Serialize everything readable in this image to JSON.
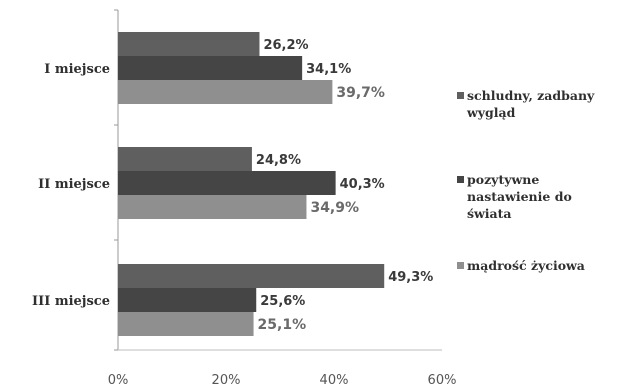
{
  "chart_data": {
    "type": "bar",
    "orientation": "horizontal",
    "categories": [
      "I miejsce",
      "II miejsce",
      "III miejsce"
    ],
    "series": [
      {
        "name": "schludny, zadbany wygląd",
        "color": "#5f5f5f",
        "values": [
          26.2,
          24.8,
          49.3
        ],
        "labels": [
          "26,2%",
          "24,8%",
          "49,3%"
        ]
      },
      {
        "name": "pozytywne nastawienie do świata",
        "color": "#454545",
        "values": [
          34.1,
          40.3,
          25.6
        ],
        "labels": [
          "34,1%",
          "40,3%",
          "25,6%"
        ]
      },
      {
        "name": "mądrość życiowa",
        "color": "#8f8f8f",
        "values": [
          39.7,
          34.9,
          25.1
        ],
        "labels": [
          "39,7%",
          "34,9%",
          "25,1%"
        ]
      }
    ],
    "legend_lines": [
      [
        "schludny, zadbany",
        "wygląd"
      ],
      [
        "pozytywne",
        "nastawienie do",
        "świata"
      ],
      [
        "mądrość życiowa"
      ]
    ],
    "xlim": [
      0,
      60
    ],
    "xticks": [
      0,
      20,
      40,
      60
    ],
    "xtick_labels": [
      "0%",
      "20%",
      "40%",
      "60%"
    ],
    "legend_position": "right",
    "grid": false
  }
}
